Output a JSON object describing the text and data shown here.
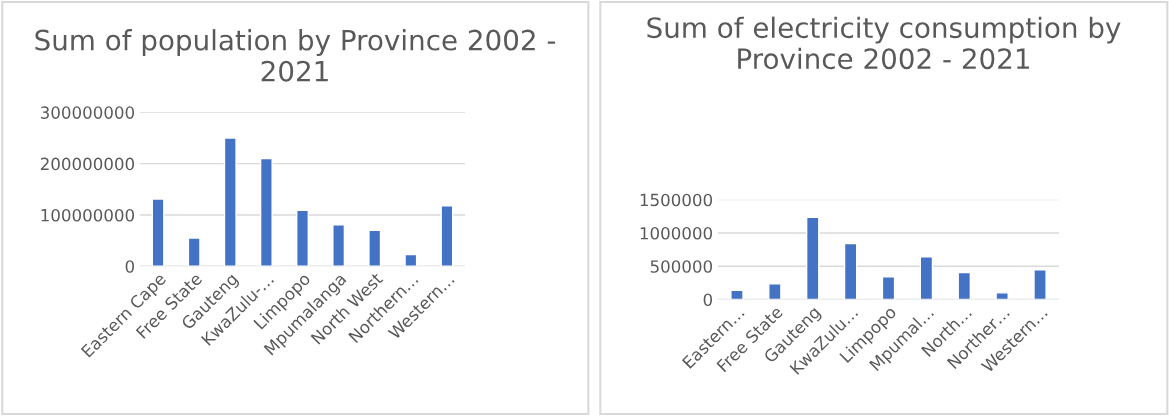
{
  "chart_data": [
    {
      "type": "bar",
      "title": "Sum of population by Province 2002 - 2021",
      "categories": [
        "Eastern Cape",
        "Free State",
        "Gauteng",
        "KwaZulu-…",
        "Limpopo",
        "Mpumalanga",
        "North West",
        "Northern…",
        "Western…"
      ],
      "values": [
        131000000,
        55000000,
        250000000,
        210000000,
        109000000,
        81000000,
        70000000,
        23000000,
        118000000
      ],
      "color": "#4472c4",
      "ylim": [
        0,
        300000000
      ],
      "yticks": [
        0,
        100000000,
        200000000,
        300000000
      ],
      "grid": "y",
      "legend": false
    },
    {
      "type": "bar",
      "title": "Sum of electricity consumption by Province 2002 - 2021",
      "categories": [
        "Eastern…",
        "Free State",
        "Gauteng",
        "KwaZulu…",
        "Limpopo",
        "Mpumal…",
        "North…",
        "Norther…",
        "Western…"
      ],
      "values": [
        140000,
        235000,
        1235000,
        840000,
        340000,
        640000,
        405000,
        100000,
        445000
      ],
      "color": "#4472c4",
      "ylim": [
        0,
        1500000
      ],
      "yticks": [
        0,
        500000,
        1000000,
        1500000
      ],
      "grid": "y",
      "legend": false
    }
  ]
}
